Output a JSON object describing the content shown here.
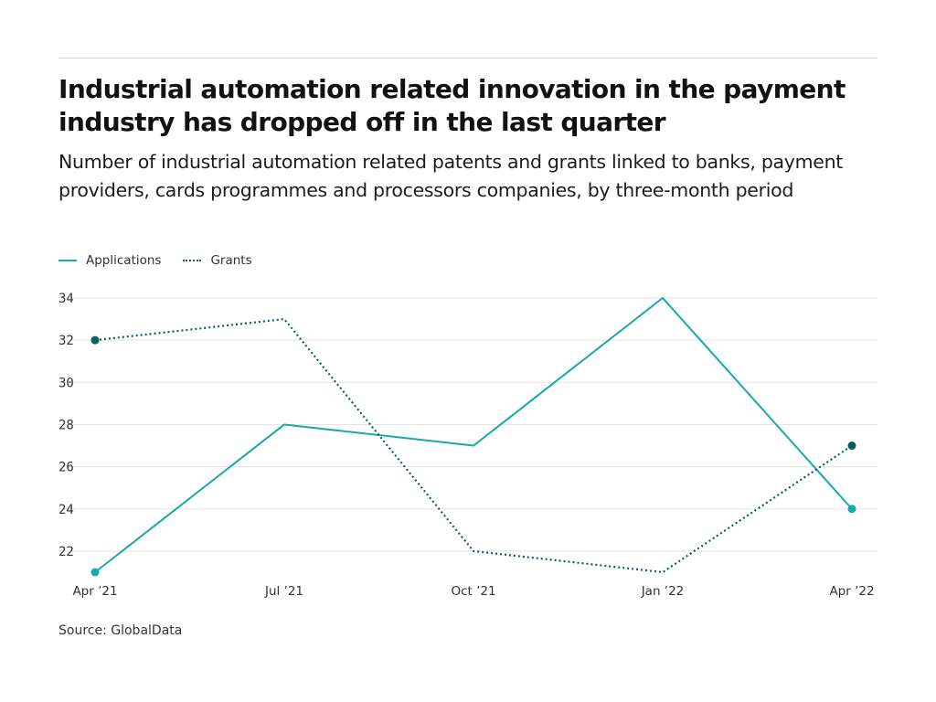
{
  "header": {
    "title": "Industrial automation related innovation in the payment industry has dropped off in the last quarter",
    "subtitle": "Number of industrial automation related patents and grants linked to banks, payment providers, cards programmes and processors companies, by three-month period"
  },
  "footer": {
    "source": "Source: GlobalData"
  },
  "colors": {
    "applications": "#19a8ab",
    "grants": "#0b5f5f",
    "grid": "#e3e3e3",
    "axis_text": "#333333"
  },
  "chart_data": {
    "type": "line",
    "title": "Industrial automation related innovation in the payment industry has dropped off in the last quarter",
    "subtitle": "Number of industrial automation related patents and grants linked to banks, payment providers, cards programmes and processors companies, by three-month period",
    "categories": [
      "Apr ’21",
      "Jul ’21",
      "Oct ’21",
      "Jan ’22",
      "Apr ’22"
    ],
    "series": [
      {
        "name": "Applications",
        "values": [
          21,
          28,
          27,
          34,
          24
        ],
        "style": "solid",
        "color": "#19a8ab"
      },
      {
        "name": "Grants",
        "values": [
          32,
          33,
          22,
          21,
          27
        ],
        "style": "dotted",
        "color": "#0b5f5f"
      }
    ],
    "ylim": [
      21,
      34
    ],
    "yticks": [
      22,
      24,
      26,
      28,
      30,
      32,
      34
    ],
    "grid": true,
    "legend": "top-left",
    "xlabel": "",
    "ylabel": ""
  }
}
